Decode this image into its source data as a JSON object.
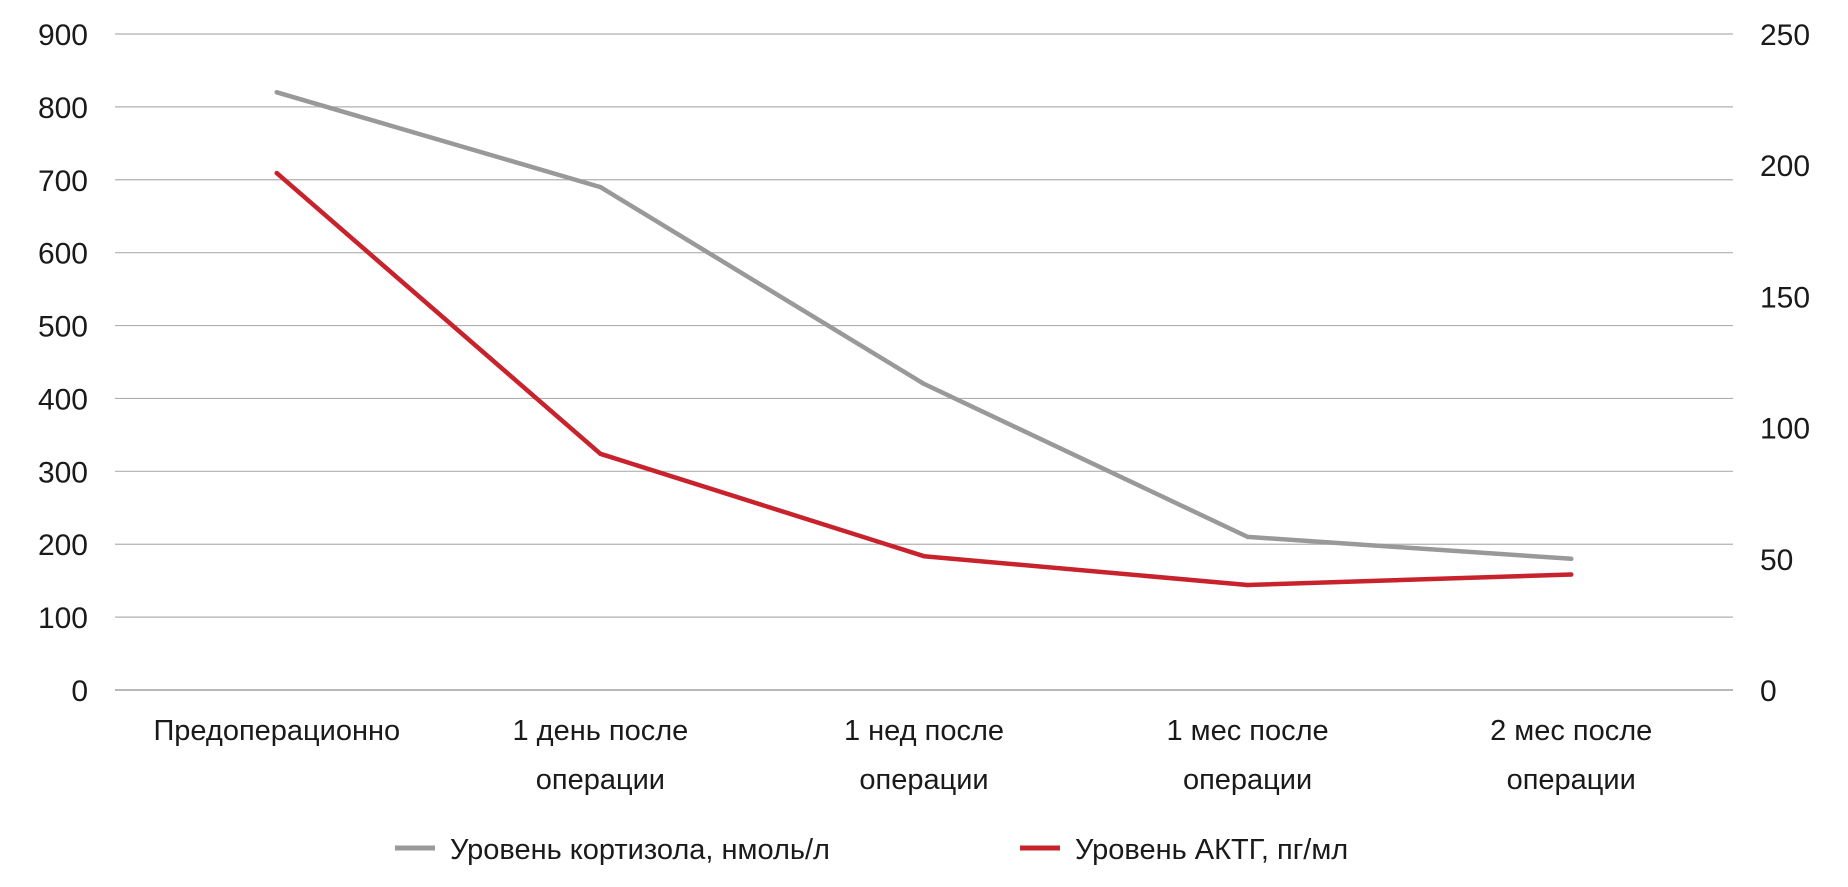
{
  "chart_data": {
    "type": "line",
    "title": "",
    "categories": [
      [
        "Предоперационно"
      ],
      [
        "1 день после",
        "операции"
      ],
      [
        "1 нед после",
        "операции"
      ],
      [
        "1 мес после",
        "операции"
      ],
      [
        "2 мес после",
        "операции"
      ]
    ],
    "y_left": {
      "ylim": [
        0,
        900
      ],
      "ticks": [
        0,
        100,
        200,
        300,
        400,
        500,
        600,
        700,
        800,
        900
      ]
    },
    "y_right": {
      "ylim": [
        0,
        250
      ],
      "ticks": [
        0,
        50,
        100,
        150,
        200,
        250
      ]
    },
    "series": [
      {
        "name": "Уровень кортизола, нмоль/л",
        "axis": "left",
        "color": "#999999",
        "values": [
          820,
          690,
          420,
          210,
          180
        ]
      },
      {
        "name": "Уровень АКТГ, пг/мл",
        "axis": "right",
        "color": "#c8232c",
        "values": [
          197,
          90,
          51,
          40,
          44
        ]
      }
    ],
    "grid": true,
    "legend_position": "bottom"
  }
}
